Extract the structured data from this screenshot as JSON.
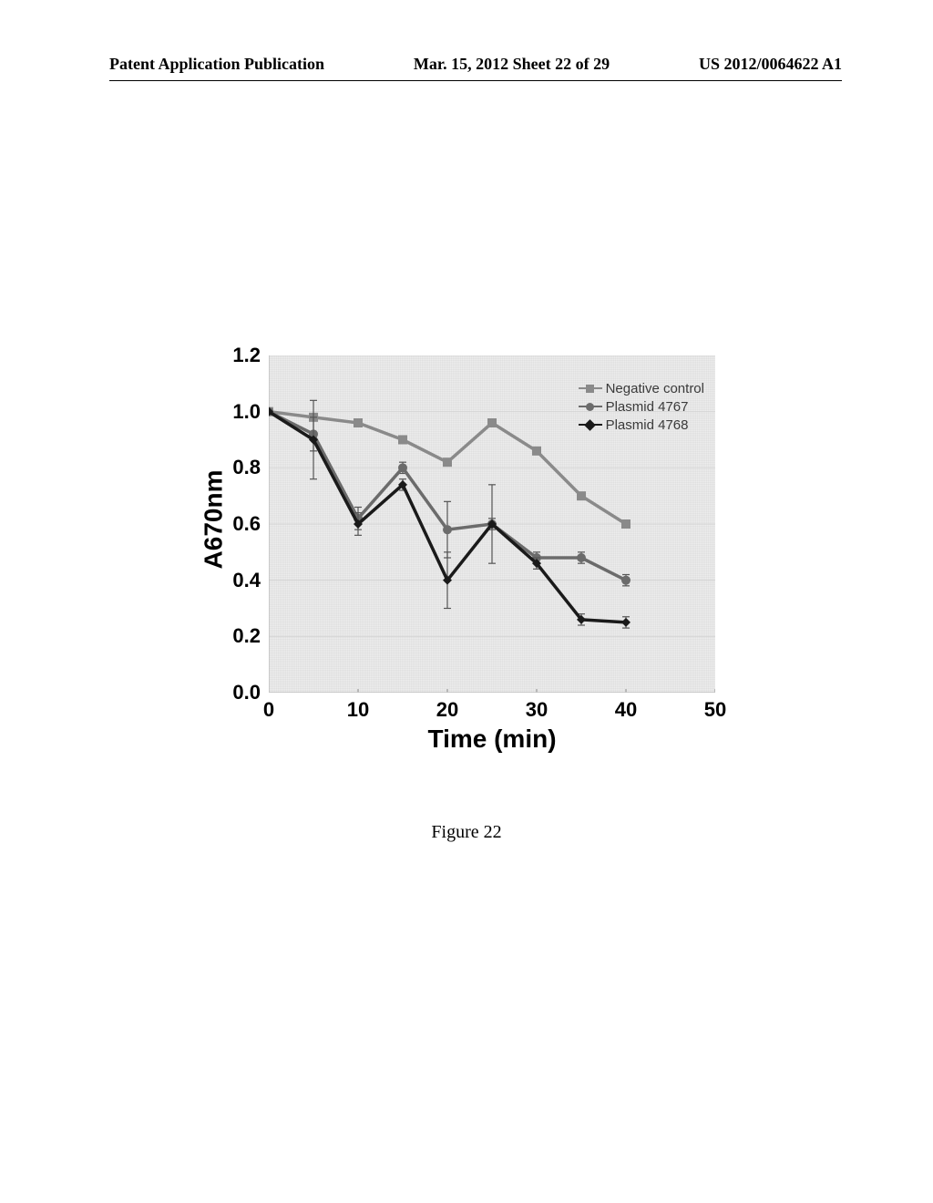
{
  "header": {
    "left": "Patent Application Publication",
    "center": "Mar. 15, 2012  Sheet 22 of 29",
    "right": "US 2012/0064622 A1"
  },
  "caption": "Figure 22",
  "chart": {
    "type": "line",
    "xlabel": "Time (min)",
    "ylabel": "A670nm",
    "xlim": [
      0,
      50
    ],
    "ylim": [
      0.0,
      1.2
    ],
    "xticks": [
      0,
      10,
      20,
      30,
      40,
      50
    ],
    "yticks": [
      0.0,
      0.2,
      0.4,
      0.6,
      0.8,
      1.0,
      1.2
    ],
    "ytick_labels": [
      "0.0",
      "0.2",
      "0.4",
      "0.6",
      "0.8",
      "1.0",
      "1.2"
    ],
    "background_color": "#ededed",
    "grid_color": "#d6d6d6",
    "axis_color": "#bfbfbf",
    "tick_label_fontsize": 22,
    "axis_label_fontsize": 28,
    "legend": {
      "position": "top-right-inside",
      "fontsize": 15,
      "items": [
        {
          "label": "Negative control",
          "marker": "square",
          "color": "#8a8a8a"
        },
        {
          "label": "Plasmid 4767",
          "marker": "circle",
          "color": "#6b6b6b"
        },
        {
          "label": "Plasmid 4768",
          "marker": "diamond",
          "color": "#1a1a1a"
        }
      ]
    },
    "series": [
      {
        "name": "Negative control",
        "color": "#8a8a8a",
        "marker": "square",
        "marker_size": 10,
        "line_width": 3.5,
        "x": [
          0,
          5,
          10,
          15,
          20,
          25,
          30,
          35,
          40
        ],
        "y": [
          1.0,
          0.98,
          0.96,
          0.9,
          0.82,
          0.96,
          0.86,
          0.7,
          0.6
        ],
        "yerr": [
          0,
          0,
          0,
          0,
          0,
          0,
          0,
          0,
          0
        ]
      },
      {
        "name": "Plasmid 4767",
        "color": "#6b6b6b",
        "marker": "circle",
        "marker_size": 10,
        "line_width": 3.5,
        "x": [
          0,
          5,
          10,
          15,
          20,
          25,
          30,
          35,
          40
        ],
        "y": [
          1.0,
          0.92,
          0.62,
          0.8,
          0.58,
          0.6,
          0.48,
          0.48,
          0.4
        ],
        "yerr": [
          0,
          0.06,
          0.04,
          0.02,
          0.1,
          0.14,
          0.02,
          0.02,
          0.02
        ]
      },
      {
        "name": "Plasmid 4768",
        "color": "#1a1a1a",
        "marker": "diamond",
        "marker_size": 10,
        "line_width": 3.5,
        "x": [
          0,
          5,
          10,
          15,
          20,
          25,
          30,
          35,
          40
        ],
        "y": [
          1.0,
          0.9,
          0.6,
          0.74,
          0.4,
          0.6,
          0.46,
          0.26,
          0.25
        ],
        "yerr": [
          0,
          0.14,
          0.04,
          0.02,
          0.1,
          0.02,
          0.02,
          0.02,
          0.02
        ]
      }
    ]
  }
}
